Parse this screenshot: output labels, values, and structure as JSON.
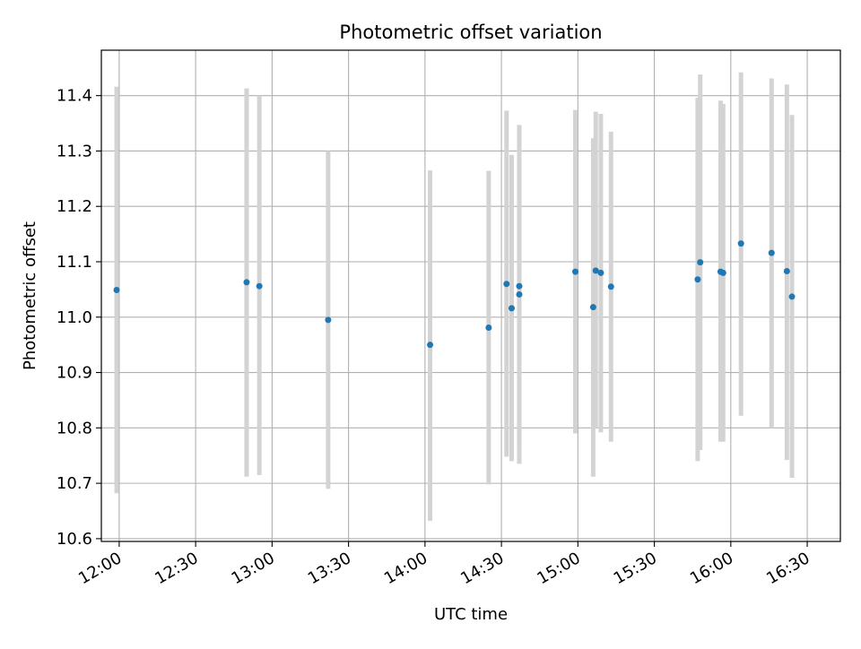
{
  "chart_data": {
    "type": "scatter",
    "title": "Photometric offset variation",
    "xlabel": "UTC time",
    "ylabel": "Photometric offset",
    "grid": true,
    "x_ticks": [
      "12:00",
      "12:30",
      "13:00",
      "13:30",
      "14:00",
      "14:30",
      "15:00",
      "15:30",
      "16:00",
      "16:30"
    ],
    "y_ticks": [
      "10.6",
      "10.7",
      "10.8",
      "10.9",
      "11.0",
      "11.1",
      "11.2",
      "11.3",
      "11.4"
    ],
    "xlim": [
      "11:53",
      "16:43"
    ],
    "ylim": [
      10.595,
      11.482
    ],
    "colors": {
      "point": "#1f77b4",
      "errorbar": "#d3d3d3",
      "grid": "#b0b0b0",
      "axes": "#000000"
    },
    "series": [
      {
        "x": [
          "11:59",
          "12:50",
          "12:55",
          "13:22",
          "14:02",
          "14:25",
          "14:32",
          "14:34",
          "14:37",
          "14:37",
          "14:59",
          "15:06",
          "15:07",
          "15:09",
          "15:13",
          "15:47",
          "15:48",
          "15:56",
          "15:57",
          "16:04",
          "16:16",
          "16:22",
          "16:24"
        ],
        "y": [
          11.049,
          11.063,
          11.056,
          10.995,
          10.95,
          10.981,
          11.06,
          11.016,
          11.056,
          11.041,
          11.082,
          11.018,
          11.084,
          11.08,
          11.055,
          11.068,
          11.099,
          11.082,
          11.08,
          11.133,
          11.116,
          11.083,
          11.037
        ],
        "y_low": [
          10.682,
          10.712,
          10.715,
          10.69,
          10.632,
          10.698,
          10.748,
          10.74,
          10.77,
          10.735,
          10.79,
          10.712,
          10.8,
          10.792,
          10.775,
          10.74,
          10.76,
          10.775,
          10.775,
          10.822,
          10.8,
          10.742,
          10.71
        ],
        "y_high": [
          11.416,
          11.413,
          11.4,
          11.3,
          11.265,
          11.264,
          11.373,
          11.293,
          11.342,
          11.347,
          11.374,
          11.323,
          11.371,
          11.367,
          11.335,
          11.396,
          11.438,
          11.391,
          11.385,
          11.442,
          11.431,
          11.42,
          11.365
        ]
      }
    ]
  }
}
